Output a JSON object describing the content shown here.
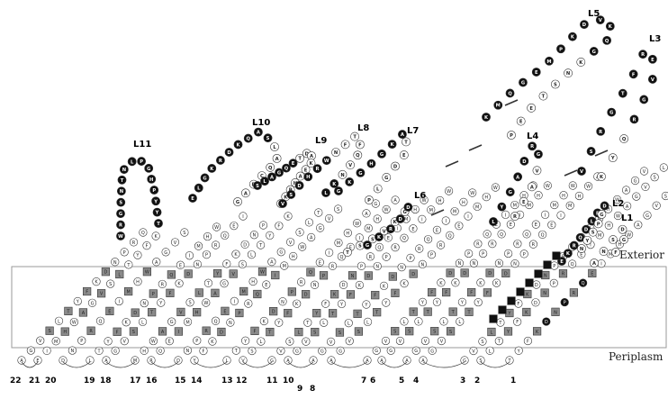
{
  "regions": {
    "exterior": "Exterior",
    "periplasm": "Periplasm"
  },
  "loops": {
    "L1": "L1",
    "L2": "L2",
    "L3": "L3",
    "L4": "L4",
    "L5": "L5",
    "L6": "L6",
    "L7": "L7",
    "L8": "L8",
    "L9": "L9",
    "L10": "L10",
    "L11": "L11"
  },
  "strands": {
    "s1": "1",
    "s2": "2",
    "s3": "3",
    "s4": "4",
    "s5": "5",
    "s6": "6",
    "s7": "7",
    "s8": "8",
    "s9": "9",
    "s10": "10",
    "s11": "11",
    "s12": "12",
    "s13": "13",
    "s14": "14",
    "s15": "15",
    "s16": "16",
    "s17": "17",
    "s18": "18",
    "s19": "19",
    "s20": "20",
    "s21": "21",
    "s22": "22"
  },
  "loop_sequences": {
    "L11": "WRGSNTNLPGHPYYT",
    "L10": "ELGKRDKQASLAQCDAG",
    "L9": "SLAGQETDAKEAHPKG",
    "L8": "VSDHRWNFTFQVNKL",
    "L7": "GKGHGKATEDGLP",
    "L6": "TSSVKGDDRKG",
    "L5": "KMQGEMPKDVKQGKNSTEEP",
    "L4": "LYGADRGVAER",
    "L3": "VSRGTFREVGRQYK",
    "L2": "EKRQDLEDGPSYN",
    "L1": "ANSDGF"
  },
  "colors": {
    "membrane_line": "#9a9a9a",
    "residue_outline": "#333333",
    "exposed_fill": "#111111",
    "aromatic_fill": "#8a8a8a",
    "plain_fill": "#ffffff"
  }
}
